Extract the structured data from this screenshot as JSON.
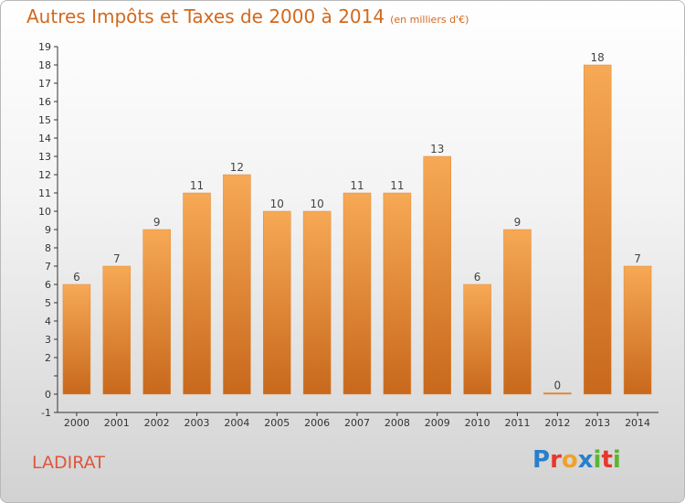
{
  "title": "Autres Impôts et Taxes de 2000 à 2014",
  "subtitle": "(en milliers d'€)",
  "commune": "LADIRAT",
  "logo": {
    "letters": [
      "P",
      "r",
      "o",
      "x",
      "i",
      "t",
      "i"
    ],
    "colors": [
      "#2a7fc9",
      "#e8372c",
      "#f0a12a",
      "#2a7fc9",
      "#5cb531",
      "#e8372c",
      "#5cb531"
    ]
  },
  "colors": {
    "bar_light": "#f7a955",
    "bar_dark": "#c8681c",
    "title": "#d2691e"
  },
  "chart_data": {
    "type": "bar",
    "categories": [
      "2000",
      "2001",
      "2002",
      "2003",
      "2004",
      "2005",
      "2006",
      "2007",
      "2008",
      "2009",
      "2010",
      "2011",
      "2012",
      "2013",
      "2014"
    ],
    "values": [
      6,
      7,
      9,
      11,
      12,
      10,
      10,
      11,
      11,
      13,
      6,
      9,
      0,
      18,
      7
    ],
    "ylim": [
      -1,
      19
    ],
    "yticks": [
      "-1",
      "0",
      "",
      "2",
      "3",
      "4",
      "5",
      "6",
      "7",
      "8",
      "9",
      "10",
      "11",
      "12",
      "13",
      "14",
      "15",
      "16",
      "17",
      "18",
      "19"
    ],
    "grid": false
  }
}
